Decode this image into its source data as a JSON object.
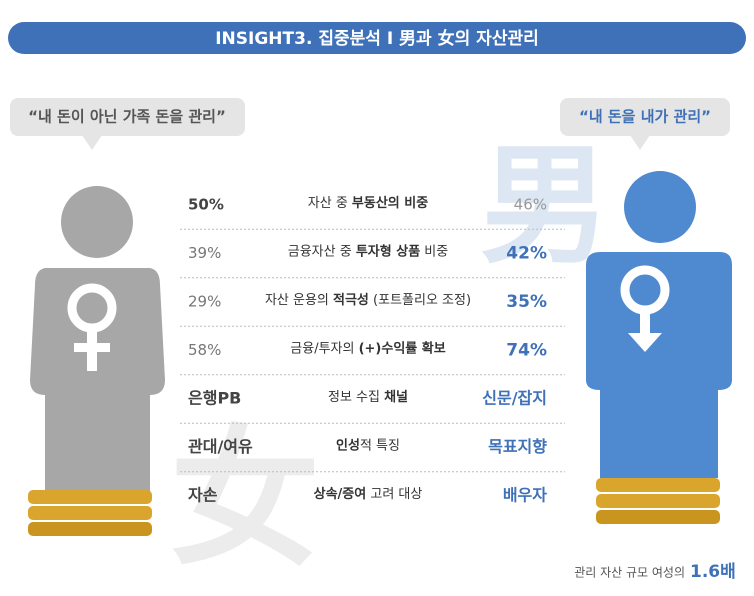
{
  "header": {
    "title": "INSIGHT3. 집중분석 I 男과 女의 자산관리"
  },
  "female": {
    "quote": "“내 돈이 아닌 가족 돈을 관리”",
    "symbol": "女"
  },
  "male": {
    "quote": "“내 돈을 내가 관리”",
    "symbol": "男"
  },
  "rows": [
    {
      "female": "50%",
      "male": "46%",
      "highlight": "female",
      "label": [
        {
          "text": "자산 중 "
        },
        {
          "text": "부동산의 비중",
          "bold": true
        }
      ]
    },
    {
      "female": "39%",
      "male": "42%",
      "highlight": "male",
      "label": [
        {
          "text": "금융자산 중 "
        },
        {
          "text": "투자형 상품",
          "bold": true
        },
        {
          "text": " 비중"
        }
      ]
    },
    {
      "female": "29%",
      "male": "35%",
      "highlight": "male",
      "label": [
        {
          "text": "자산 운용의 "
        },
        {
          "text": "적극성",
          "bold": true
        },
        {
          "text": " (포트폴리오 조정)"
        }
      ]
    },
    {
      "female": "58%",
      "male": "74%",
      "highlight": "male",
      "label": [
        {
          "text": "금융/투자의 "
        },
        {
          "text": "(+)수익률 확보",
          "bold": true
        }
      ]
    },
    {
      "female": "은행PB",
      "male": "신문/잡지",
      "highlight": "both",
      "label": [
        {
          "text": "정보 수집 "
        },
        {
          "text": "채널",
          "bold": true
        }
      ]
    },
    {
      "female": "관대/여유",
      "male": "목표지향",
      "highlight": "both",
      "label": [
        {
          "text": "인성",
          "bold": true
        },
        {
          "text": "적 특징"
        }
      ]
    },
    {
      "female": "자손",
      "male": "배우자",
      "highlight": "both",
      "label": [
        {
          "text": "상속/증여",
          "bold": true
        },
        {
          "text": " 고려 대상"
        }
      ]
    }
  ],
  "footnote": {
    "text": "관리 자산 규모 여성의",
    "value": "1.6배"
  }
}
